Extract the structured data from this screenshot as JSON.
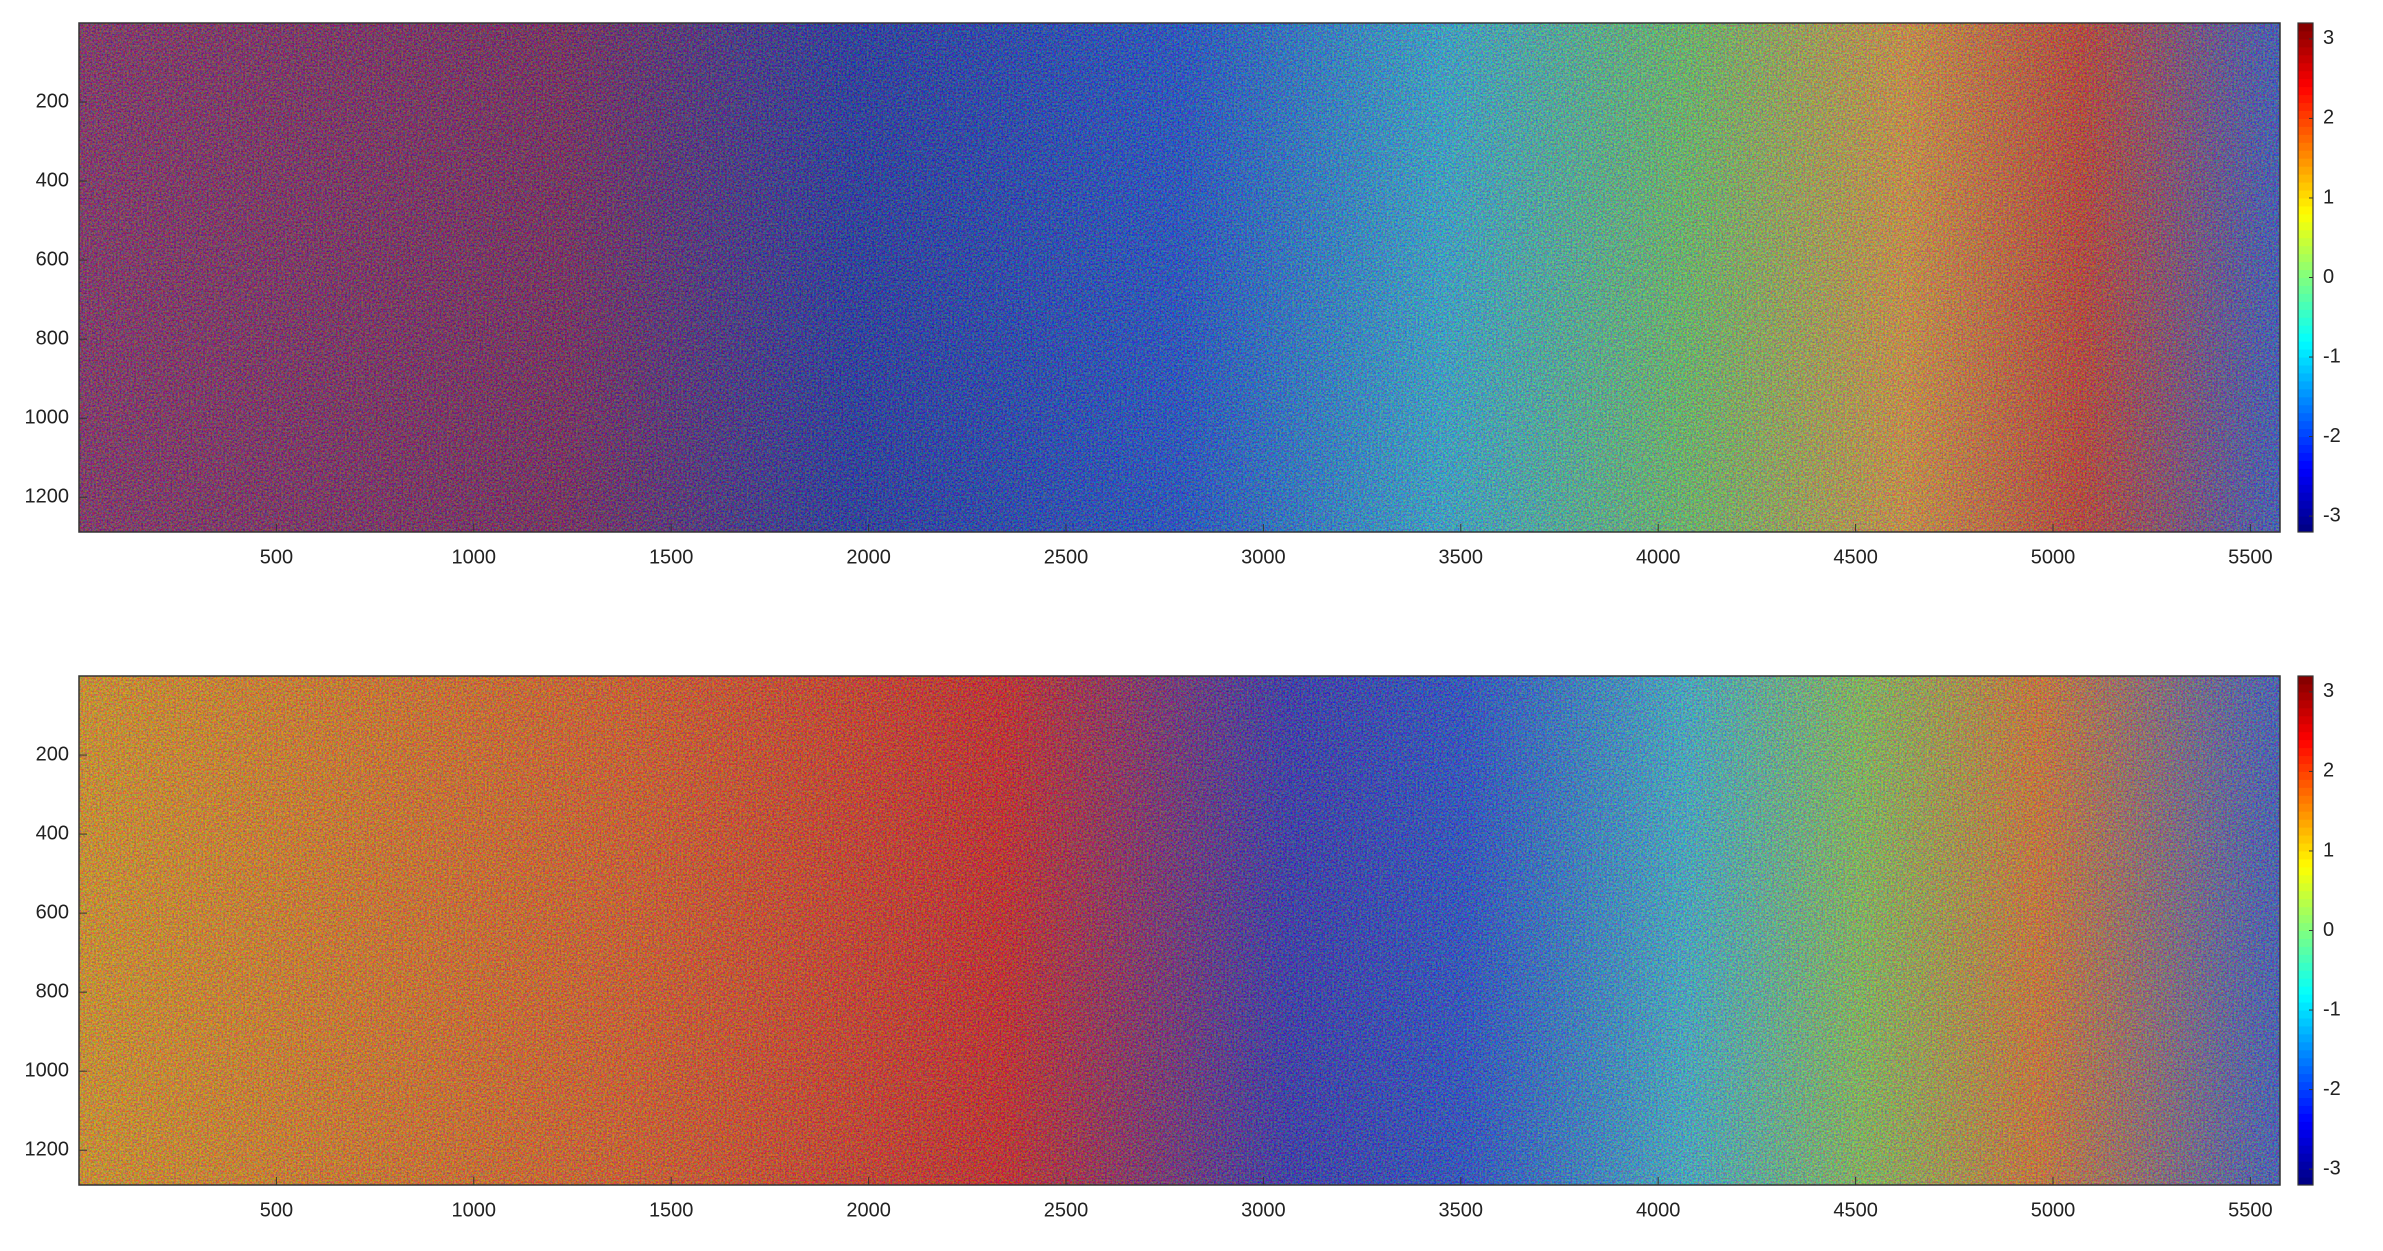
{
  "chart_data": [
    {
      "type": "heatmap",
      "colormap": "jet",
      "xlim": [
        0,
        5575
      ],
      "ylim": [
        1288,
        0
      ],
      "xticks": [
        500,
        1000,
        1500,
        2000,
        2500,
        3000,
        3500,
        4000,
        4500,
        5000,
        5500
      ],
      "yticks": [
        200,
        400,
        600,
        800,
        1000,
        1200
      ],
      "colorbar": {
        "lim": [
          -3.2,
          3.2
        ],
        "ticks": [
          -3,
          -2,
          -1,
          0,
          1,
          2,
          3
        ]
      }
    },
    {
      "type": "heatmap",
      "colormap": "jet",
      "xlim": [
        0,
        5575
      ],
      "ylim": [
        1288,
        0
      ],
      "xticks": [
        500,
        1000,
        1500,
        2000,
        2500,
        3000,
        3500,
        4000,
        4500,
        5000,
        5500
      ],
      "yticks": [
        200,
        400,
        600,
        800,
        1000,
        1200
      ],
      "colorbar": {
        "lim": [
          -3.2,
          3.2
        ],
        "ticks": [
          -3,
          -2,
          -1,
          0,
          1,
          2,
          3
        ]
      }
    }
  ]
}
